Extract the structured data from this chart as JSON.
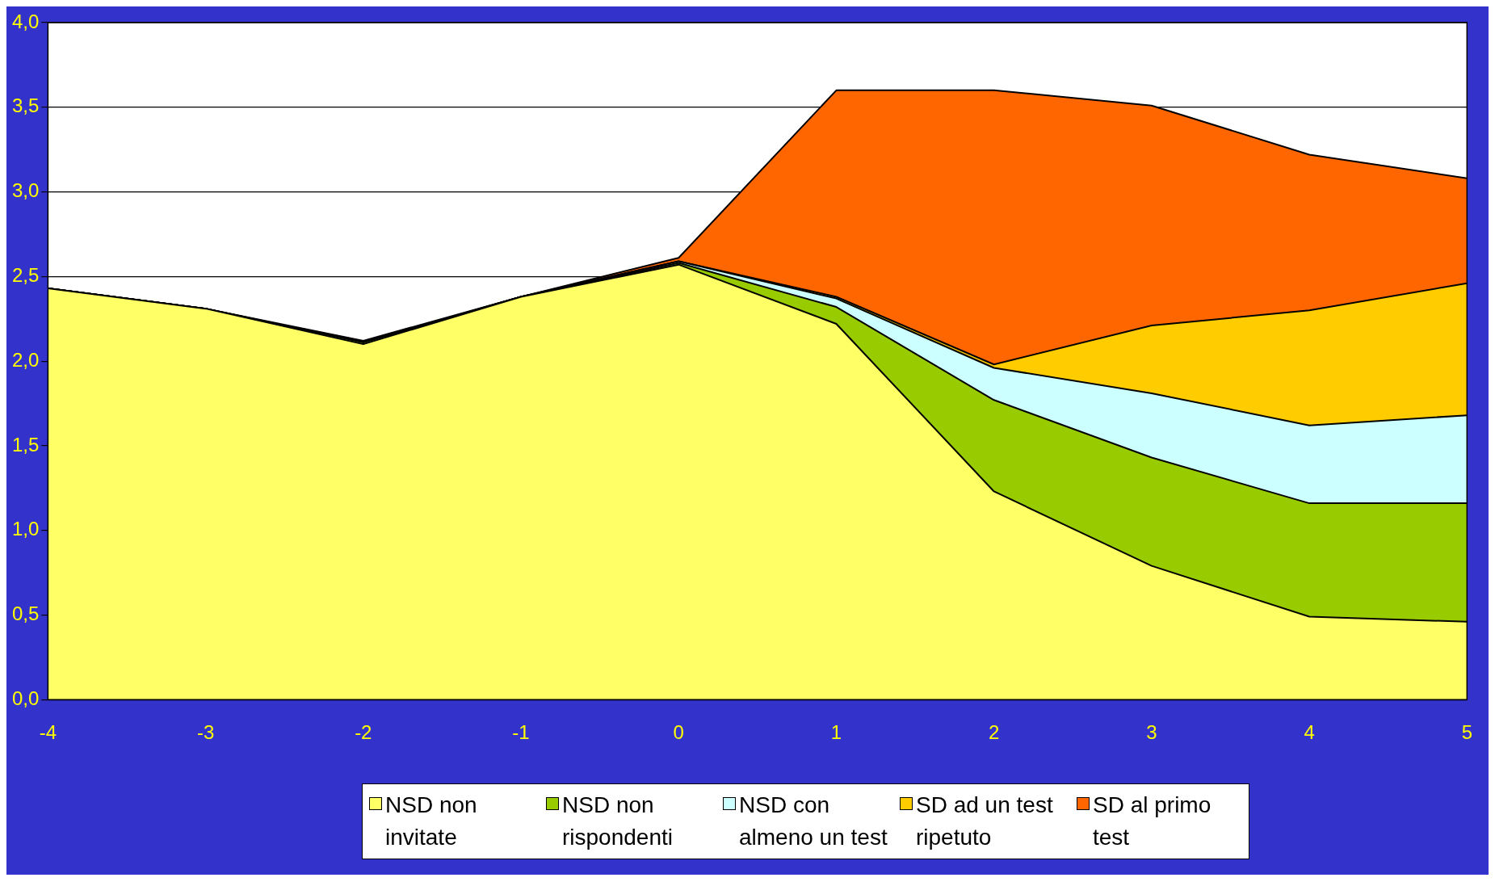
{
  "chart_data": {
    "type": "area",
    "stacked": true,
    "x": [
      -4,
      -3,
      -2,
      -1,
      0,
      1,
      2,
      3,
      4,
      5
    ],
    "series": [
      {
        "name": "NSD non invitate",
        "color": "#ffff66",
        "values": [
          2.43,
          2.31,
          2.1,
          2.38,
          2.57,
          2.22,
          1.23,
          0.79,
          0.49,
          0.46
        ]
      },
      {
        "name": "NSD non rispondenti",
        "color": "#99cc00",
        "values": [
          0,
          0,
          0.01,
          0,
          0.01,
          0.1,
          0.54,
          0.64,
          0.67,
          0.7
        ]
      },
      {
        "name": "NSD con almeno un test",
        "color": "#ccffff",
        "values": [
          0,
          0,
          0,
          0,
          0.01,
          0.05,
          0.19,
          0.38,
          0.46,
          0.52
        ]
      },
      {
        "name": "SD ad un test ripetuto",
        "color": "#ffcc00",
        "values": [
          0,
          0,
          0,
          0,
          0,
          0.01,
          0.02,
          0.4,
          0.68,
          0.78
        ]
      },
      {
        "name": "SD al primo test",
        "color": "#ff6600",
        "values": [
          0,
          0,
          0.01,
          0,
          0.02,
          1.22,
          1.62,
          1.3,
          0.92,
          0.62
        ]
      }
    ],
    "xlim": [
      -4,
      5
    ],
    "xticks": [
      -4,
      -3,
      -2,
      -1,
      0,
      1,
      2,
      3,
      4,
      5
    ],
    "ylim": [
      0,
      4
    ],
    "yticks": [
      {
        "value": 0,
        "label": "0,0"
      },
      {
        "value": 0.5,
        "label": "0,5"
      },
      {
        "value": 1,
        "label": "1,0"
      },
      {
        "value": 1.5,
        "label": "1,5"
      },
      {
        "value": 2,
        "label": "2,0"
      },
      {
        "value": 2.5,
        "label": "2,5"
      },
      {
        "value": 3,
        "label": "3,0"
      },
      {
        "value": 3.5,
        "label": "3,5"
      },
      {
        "value": 4,
        "label": "4,0"
      }
    ],
    "grid": "y",
    "legend": "bottom"
  }
}
